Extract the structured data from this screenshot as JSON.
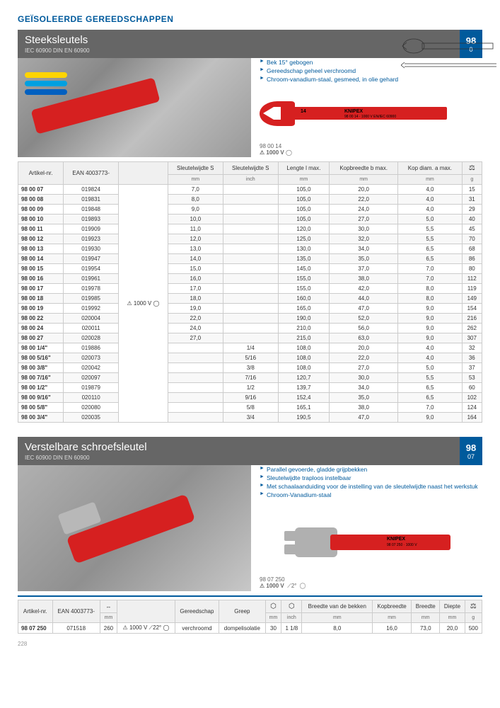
{
  "page": {
    "header": "GEÏSOLEERDE GEREEDSCHAPPEN",
    "pageNumber": "228"
  },
  "section1": {
    "title": "Steeksleutels",
    "subtitle": "IEC 60900   DIN EN 60900",
    "code": "98",
    "subcode": "0",
    "bullets": [
      "Bek 15° gebogen",
      "Gereedschap geheel verchroomd",
      "Chroom-vanadium-staal, gesmeed, in olie gehard"
    ],
    "productMeta": {
      "article": "98 00 14",
      "voltage": "1000 V"
    },
    "wrenchLabels": {
      "num": "14",
      "brand": "KNIPEX",
      "model": "98 00 14",
      "volt": "1000 V EN/IEC 60900"
    },
    "table": {
      "headers": {
        "artikel": "Artikel-nr.",
        "ean": "EAN 4003773-",
        "iso": "",
        "sw_mm_h": "Sleutelwijdte S",
        "sw_mm_u": "mm",
        "sw_in_h": "Sleutelwijdte S",
        "sw_in_u": "inch",
        "len_h": "Lengte l max.",
        "len_u": "mm",
        "kopb_h": "Kopbreedte b max.",
        "kopb_u": "mm",
        "kopd_h": "Kop diam. a max.",
        "kopd_u": "mm",
        "weight_u": "g"
      },
      "isoLabel": "⚠ 1000 V ◯",
      "rows": [
        {
          "art": "98 00 07",
          "ean": "019824",
          "sw": "7,0",
          "swi": "",
          "len": "105,0",
          "kb": "20,0",
          "kd": "4,0",
          "g": "15"
        },
        {
          "art": "98 00 08",
          "ean": "019831",
          "sw": "8,0",
          "swi": "",
          "len": "105,0",
          "kb": "22,0",
          "kd": "4,0",
          "g": "31"
        },
        {
          "art": "98 00 09",
          "ean": "019848",
          "sw": "9,0",
          "swi": "",
          "len": "105,0",
          "kb": "24,0",
          "kd": "4,0",
          "g": "29"
        },
        {
          "art": "98 00 10",
          "ean": "019893",
          "sw": "10,0",
          "swi": "",
          "len": "105,0",
          "kb": "27,0",
          "kd": "5,0",
          "g": "40"
        },
        {
          "art": "98 00 11",
          "ean": "019909",
          "sw": "11,0",
          "swi": "",
          "len": "120,0",
          "kb": "30,0",
          "kd": "5,5",
          "g": "45"
        },
        {
          "art": "98 00 12",
          "ean": "019923",
          "sw": "12,0",
          "swi": "",
          "len": "125,0",
          "kb": "32,0",
          "kd": "5,5",
          "g": "70"
        },
        {
          "art": "98 00 13",
          "ean": "019930",
          "sw": "13,0",
          "swi": "",
          "len": "130,0",
          "kb": "34,0",
          "kd": "6,5",
          "g": "68"
        },
        {
          "art": "98 00 14",
          "ean": "019947",
          "sw": "14,0",
          "swi": "",
          "len": "135,0",
          "kb": "35,0",
          "kd": "6,5",
          "g": "86"
        },
        {
          "art": "98 00 15",
          "ean": "019954",
          "sw": "15,0",
          "swi": "",
          "len": "145,0",
          "kb": "37,0",
          "kd": "7,0",
          "g": "80"
        },
        {
          "art": "98 00 16",
          "ean": "019961",
          "sw": "16,0",
          "swi": "",
          "len": "155,0",
          "kb": "38,0",
          "kd": "7,0",
          "g": "112"
        },
        {
          "art": "98 00 17",
          "ean": "019978",
          "sw": "17,0",
          "swi": "",
          "len": "155,0",
          "kb": "42,0",
          "kd": "8,0",
          "g": "119"
        },
        {
          "art": "98 00 18",
          "ean": "019985",
          "sw": "18,0",
          "swi": "",
          "len": "160,0",
          "kb": "44,0",
          "kd": "8,0",
          "g": "149"
        },
        {
          "art": "98 00 19",
          "ean": "019992",
          "sw": "19,0",
          "swi": "",
          "len": "165,0",
          "kb": "47,0",
          "kd": "9,0",
          "g": "154"
        },
        {
          "art": "98 00 22",
          "ean": "020004",
          "sw": "22,0",
          "swi": "",
          "len": "190,0",
          "kb": "52,0",
          "kd": "9,0",
          "g": "216"
        },
        {
          "art": "98 00 24",
          "ean": "020011",
          "sw": "24,0",
          "swi": "",
          "len": "210,0",
          "kb": "56,0",
          "kd": "9,0",
          "g": "262"
        },
        {
          "art": "98 00 27",
          "ean": "020028",
          "sw": "27,0",
          "swi": "",
          "len": "215,0",
          "kb": "63,0",
          "kd": "9,0",
          "g": "307"
        },
        {
          "art": "98 00 1/4\"",
          "ean": "019886",
          "sw": "",
          "swi": "1/4",
          "len": "108,0",
          "kb": "20,0",
          "kd": "4,0",
          "g": "32"
        },
        {
          "art": "98 00 5/16\"",
          "ean": "020073",
          "sw": "",
          "swi": "5/16",
          "len": "108,0",
          "kb": "22,0",
          "kd": "4,0",
          "g": "36"
        },
        {
          "art": "98 00 3/8\"",
          "ean": "020042",
          "sw": "",
          "swi": "3/8",
          "len": "108,0",
          "kb": "27,0",
          "kd": "5,0",
          "g": "37"
        },
        {
          "art": "98 00 7/16\"",
          "ean": "020097",
          "sw": "",
          "swi": "7/16",
          "len": "120,7",
          "kb": "30,0",
          "kd": "5,5",
          "g": "53"
        },
        {
          "art": "98 00 1/2\"",
          "ean": "019879",
          "sw": "",
          "swi": "1/2",
          "len": "139,7",
          "kb": "34,0",
          "kd": "6,5",
          "g": "60"
        },
        {
          "art": "98 00 9/16\"",
          "ean": "020110",
          "sw": "",
          "swi": "9/16",
          "len": "152,4",
          "kb": "35,0",
          "kd": "6,5",
          "g": "102"
        },
        {
          "art": "98 00 5/8\"",
          "ean": "020080",
          "sw": "",
          "swi": "5/8",
          "len": "165,1",
          "kb": "38,0",
          "kd": "7,0",
          "g": "124"
        },
        {
          "art": "98 00 3/4\"",
          "ean": "020035",
          "sw": "",
          "swi": "3/4",
          "len": "190,5",
          "kb": "47,0",
          "kd": "9,0",
          "g": "164"
        }
      ]
    }
  },
  "section2": {
    "title": "Verstelbare schroefsleutel",
    "subtitle": "IEC 60900   DIN EN 60900",
    "code": "98",
    "subcode": "07",
    "bullets": [
      "Parallel gevoerde, gladde grijpbekken",
      "Sleutelwijdte traploos instelbaar",
      "Met schaalaanduiding voor de instelling van de sleutelwijdte naast het werkstuk",
      "Chroom-Vanadium-staal"
    ],
    "productMeta": {
      "article": "98 07 250",
      "voltage": "1000 V",
      "angle": "2°"
    },
    "wrenchLabels": {
      "brand": "KNIPEX",
      "model": "98 07 250",
      "volt": "1000 V"
    },
    "table": {
      "headers": {
        "artikel": "Artikel-nr.",
        "ean": "EAN 4003773-",
        "len_u": "mm",
        "iso": "",
        "gereed": "Gereedschap",
        "greep": "Greep",
        "hex_mm": "mm",
        "hex_in": "inch",
        "bekken_h": "Breedte van de bekken",
        "bekken_u": "mm",
        "kopb_h": "Kopbreedte",
        "kopb_u": "mm",
        "breedte_h": "Breedte",
        "breedte_u": "mm",
        "diepte_h": "Diepte",
        "diepte_u": "mm",
        "weight_u": "g"
      },
      "isoLabel": "⚠ 1000 V ⟋22° ◯",
      "row": {
        "art": "98 07 250",
        "ean": "071518",
        "len": "260",
        "gereed": "verchroomd",
        "greep": "dompelisolatie",
        "hmm": "30",
        "hin": "1 1/8",
        "bek": "8,0",
        "kb": "16,0",
        "br": "73,0",
        "dp": "20,0",
        "g": "500"
      }
    }
  }
}
